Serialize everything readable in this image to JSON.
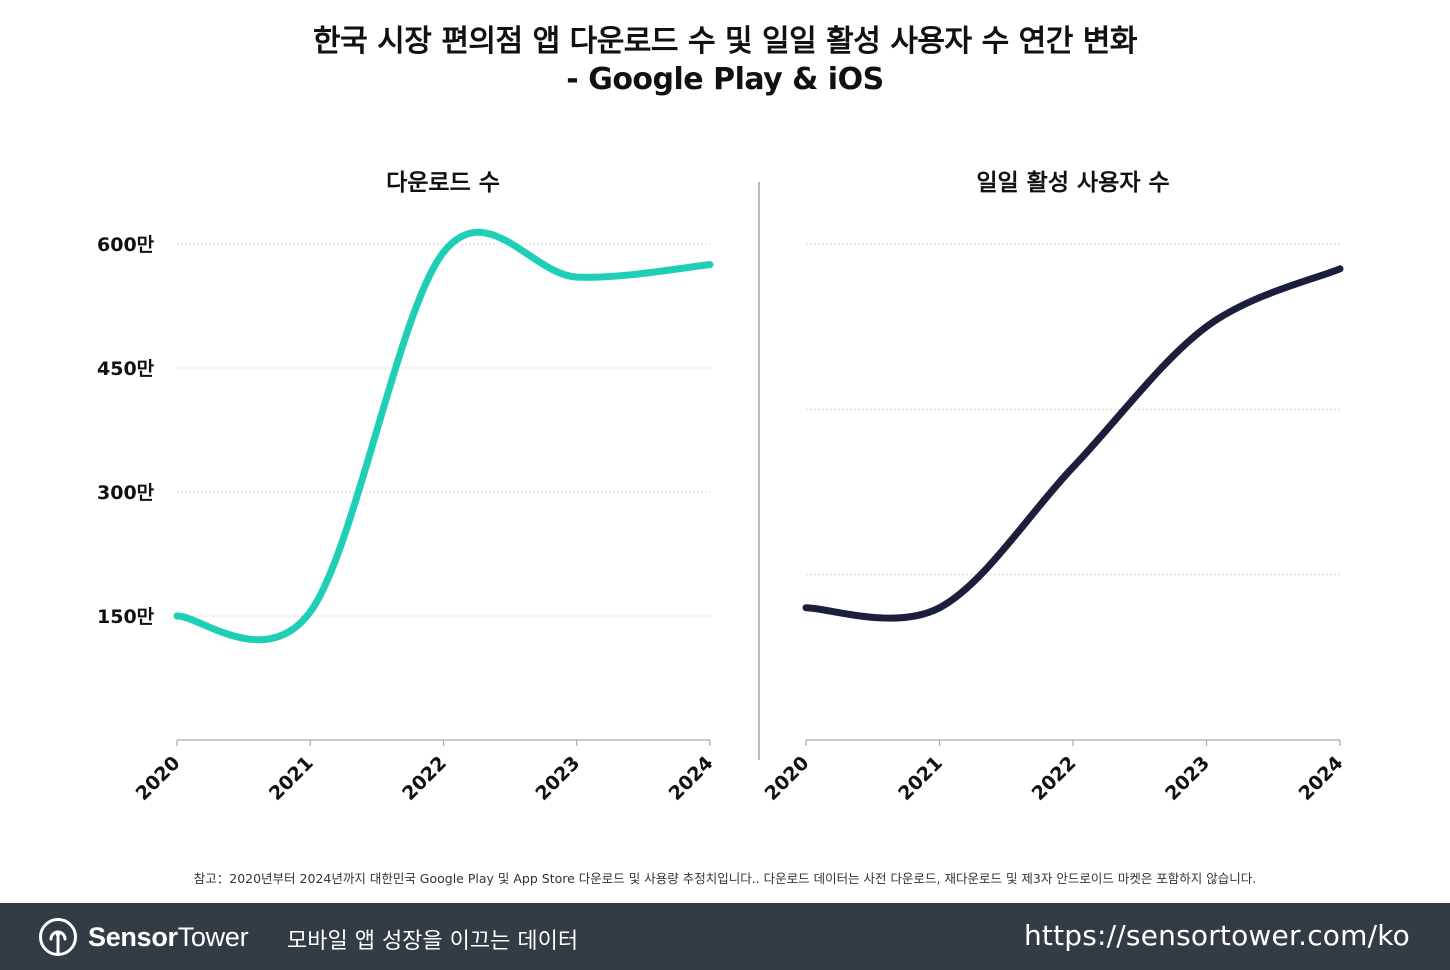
{
  "title": {
    "line1": "한국 시장 편의점 앱 다운로드 수 및 일일 활성 사용자 수 연간 변화",
    "line2": "- Google Play & iOS"
  },
  "colors": {
    "downloads_line": "#1ecfb6",
    "dau_line": "#1b1f3b",
    "grid": "#c8c8c8",
    "footer_bg": "#333b45"
  },
  "chart_data": [
    {
      "type": "line",
      "title": "다운로드 수",
      "x": [
        "2020",
        "2021",
        "2022",
        "2023",
        "2024"
      ],
      "series": [
        {
          "name": "다운로드 수",
          "values": [
            1500000,
            1550000,
            5900000,
            5600000,
            5750000
          ]
        }
      ],
      "ylim": [
        0,
        6000000
      ],
      "yticks": [
        1500000,
        3000000,
        4500000,
        6000000
      ],
      "ytick_labels": [
        "150만",
        "300만",
        "450만",
        "600만"
      ],
      "grid": true,
      "xlabel": "",
      "ylabel": ""
    },
    {
      "type": "line",
      "title": "일일 활성 사용자 수",
      "x": [
        "2020",
        "2021",
        "2022",
        "2023",
        "2024"
      ],
      "series": [
        {
          "name": "일일 활성 사용자 수",
          "values": [
            16,
            16,
            33,
            50,
            57
          ]
        }
      ],
      "ylim": [
        0,
        60
      ],
      "yticks": [
        20,
        40,
        60
      ],
      "ytick_labels": [
        "",
        "",
        ""
      ],
      "grid": true,
      "xlabel": "",
      "ylabel": ""
    }
  ],
  "note": "참고：2020년부터 2024년까지 대한민국 Google Play 및 App Store 다운로드 및 사용량 추정치입니다.. 다운로드 데이터는 사전 다운로드, 재다운로드 및 제3자 안드로이드 마켓은 포함하지 않습니다.",
  "footer": {
    "brand_bold": "Sensor",
    "brand_light": "Tower",
    "logo_icon": "sensortower-logo-icon",
    "tagline": "모바일 앱 성장을 이끄는 데이터",
    "url": "https://sensortower.com/ko"
  }
}
